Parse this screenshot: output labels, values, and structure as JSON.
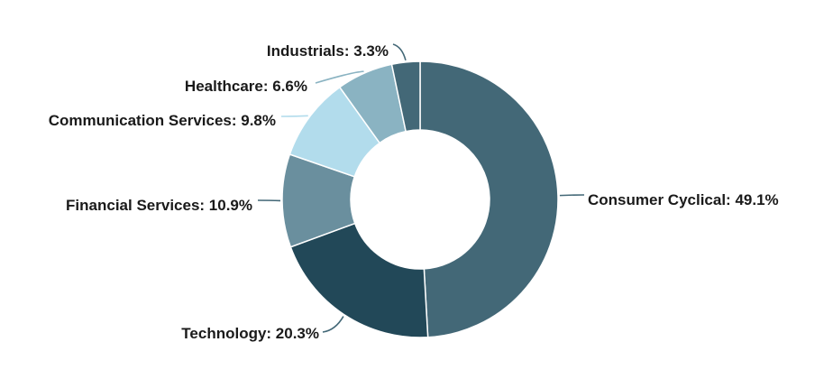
{
  "chart_data": {
    "type": "pie",
    "style": "donut",
    "title": "",
    "slices": [
      {
        "label": "Consumer Cyclical",
        "value": 49.1,
        "display": "Consumer Cyclical: 49.1%",
        "color": "#436877"
      },
      {
        "label": "Technology",
        "value": 20.3,
        "display": "Technology: 20.3%",
        "color": "#224858"
      },
      {
        "label": "Financial Services",
        "value": 10.9,
        "display": "Financial Services: 10.9%",
        "color": "#6a8f9e"
      },
      {
        "label": "Communication Services",
        "value": 9.8,
        "display": "Communication Services: 9.8%",
        "color": "#b2dcec"
      },
      {
        "label": "Healthcare",
        "value": 6.6,
        "display": "Healthcare: 6.6%",
        "color": "#8ab3c2"
      },
      {
        "label": "Industrials",
        "value": 3.3,
        "display": "Industrials: 3.3%",
        "color": "#436877"
      }
    ],
    "legend": "none",
    "labels": "outside-with-leader-lines"
  }
}
